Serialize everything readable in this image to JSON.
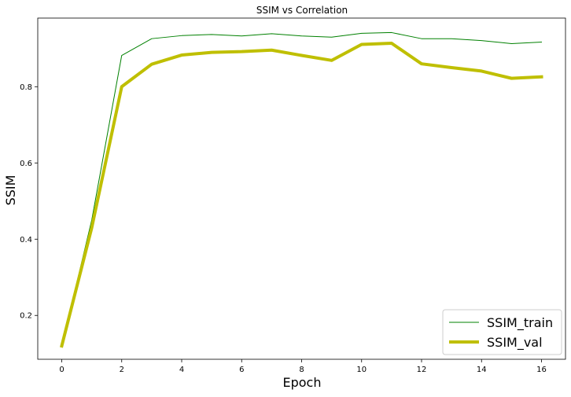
{
  "chart_data": {
    "type": "line",
    "title": "SSIM vs Correlation",
    "xlabel": "Epoch",
    "ylabel": "SSIM",
    "x": [
      0,
      1,
      2,
      3,
      4,
      5,
      6,
      7,
      8,
      9,
      10,
      11,
      12,
      13,
      14,
      15,
      16
    ],
    "xlim": [
      -0.8,
      16.8
    ],
    "ylim": [
      0.085,
      0.98
    ],
    "xticks": [
      0,
      2,
      4,
      6,
      8,
      10,
      12,
      14,
      16
    ],
    "yticks": [
      0.2,
      0.4,
      0.6,
      0.8
    ],
    "xtick_labels": [
      "0",
      "2",
      "4",
      "6",
      "8",
      "10",
      "12",
      "14",
      "16"
    ],
    "ytick_labels": [
      "0.2",
      "0.4",
      "0.6",
      "0.8"
    ],
    "grid": false,
    "legend": "lower-right",
    "series": [
      {
        "name": "SSIM_train",
        "color": "#008000",
        "values": [
          0.12,
          0.45,
          0.882,
          0.926,
          0.934,
          0.937,
          0.933,
          0.939,
          0.933,
          0.93,
          0.94,
          0.942,
          0.926,
          0.926,
          0.921,
          0.913,
          0.917
        ]
      },
      {
        "name": "SSIM_val",
        "color": "#bfbf00",
        "values": [
          0.12,
          0.43,
          0.8,
          0.859,
          0.883,
          0.89,
          0.892,
          0.896,
          0.882,
          0.869,
          0.911,
          0.914,
          0.86,
          0.85,
          0.841,
          0.822,
          0.826
        ]
      }
    ]
  }
}
